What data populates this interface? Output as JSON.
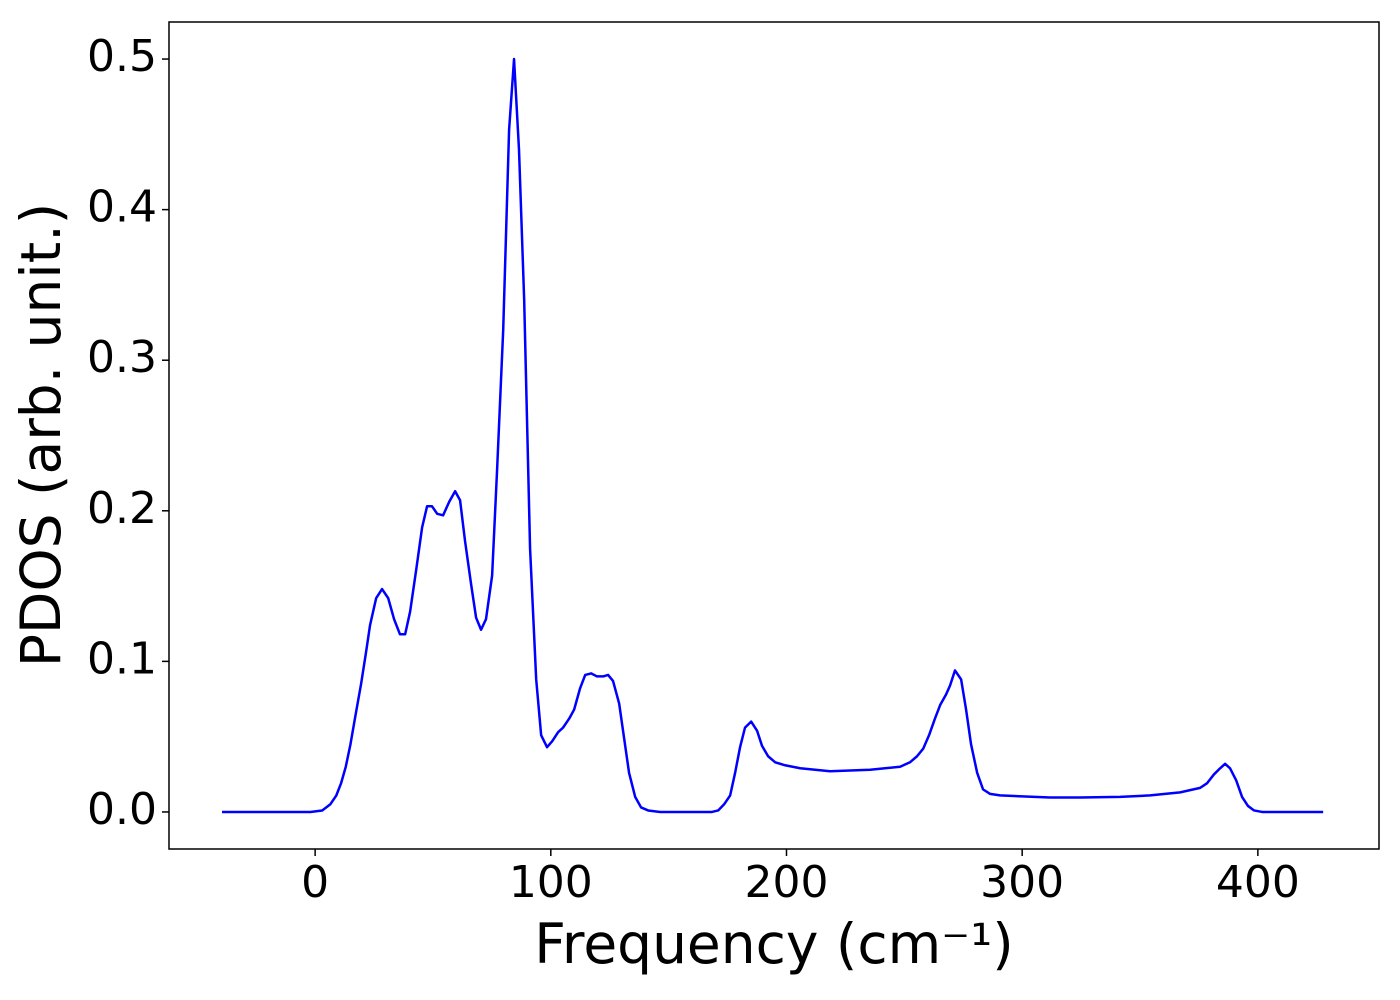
{
  "chart_data": {
    "type": "line",
    "xlabel": "Frequency (cm⁻¹)",
    "ylabel": "PDOS (arb. unit.)",
    "x": [
      -39.5,
      -2,
      3,
      6.4,
      9,
      11,
      13,
      15,
      17,
      19.5,
      21.5,
      23.3,
      25.9,
      28.4,
      31,
      33.5,
      36,
      38.2,
      40.3,
      42.9,
      45.4,
      47.5,
      49.6,
      51.8,
      54.3,
      56.9,
      59.4,
      61.5,
      63.6,
      66.2,
      68.3,
      70.4,
      72.5,
      75.1,
      77.2,
      79.8,
      82.3,
      84.4,
      86.5,
      88.7,
      91.2,
      93.8,
      95.9,
      98.4,
      100.6,
      103.1,
      105.2,
      107.8,
      109.9,
      112.4,
      114.6,
      117.1,
      119.6,
      122.2,
      124.3,
      126.4,
      129,
      131.1,
      133.2,
      135.8,
      138.3,
      141.3,
      146.4,
      168.4,
      171,
      173.5,
      176.1,
      178.2,
      180.3,
      182.4,
      185,
      187.5,
      189.6,
      192.2,
      195.2,
      199.4,
      205.8,
      218.5,
      235.5,
      248.2,
      252.4,
      255.4,
      258,
      260.5,
      263,
      265.2,
      267.7,
      269.4,
      271.5,
      274.1,
      276.2,
      278.3,
      280.9,
      283.4,
      286.4,
      290.6,
      311.8,
      324.6,
      341.5,
      354.3,
      367,
      375.5,
      378.4,
      381.4,
      384,
      386.1,
      388.2,
      390.8,
      393.3,
      395.8,
      398.4,
      401.8,
      427.7
    ],
    "values": [
      0,
      0,
      0.001,
      0.005,
      0.011,
      0.019,
      0.03,
      0.045,
      0.063,
      0.085,
      0.105,
      0.124,
      0.142,
      0.148,
      0.142,
      0.128,
      0.118,
      0.118,
      0.133,
      0.161,
      0.189,
      0.203,
      0.203,
      0.198,
      0.197,
      0.206,
      0.213,
      0.207,
      0.18,
      0.151,
      0.129,
      0.121,
      0.128,
      0.157,
      0.227,
      0.32,
      0.453,
      0.5,
      0.44,
      0.34,
      0.175,
      0.088,
      0.051,
      0.043,
      0.047,
      0.053,
      0.056,
      0.062,
      0.068,
      0.082,
      0.091,
      0.092,
      0.09,
      0.09,
      0.091,
      0.087,
      0.072,
      0.049,
      0.026,
      0.01,
      0.003,
      0.001,
      0,
      0,
      0.001,
      0.005,
      0.011,
      0.026,
      0.043,
      0.056,
      0.06,
      0.054,
      0.044,
      0.037,
      0.033,
      0.031,
      0.029,
      0.027,
      0.028,
      0.03,
      0.033,
      0.037,
      0.042,
      0.051,
      0.062,
      0.071,
      0.078,
      0.084,
      0.094,
      0.088,
      0.068,
      0.045,
      0.026,
      0.015,
      0.012,
      0.011,
      0.0096,
      0.0096,
      0.01,
      0.011,
      0.013,
      0.016,
      0.019,
      0.025,
      0.029,
      0.032,
      0.029,
      0.021,
      0.01,
      0.004,
      0.001,
      0,
      0
    ],
    "color": "#0000ff",
    "xlim": [
      -62,
      451.4
    ],
    "xticks": [
      0,
      100,
      200,
      300,
      400
    ],
    "ylim": [
      -0.0246,
      0.5246
    ],
    "yticks": [
      {
        "value": 0,
        "label": "0.0"
      },
      0.1,
      0.2,
      0.3,
      0.4,
      0.5
    ]
  }
}
